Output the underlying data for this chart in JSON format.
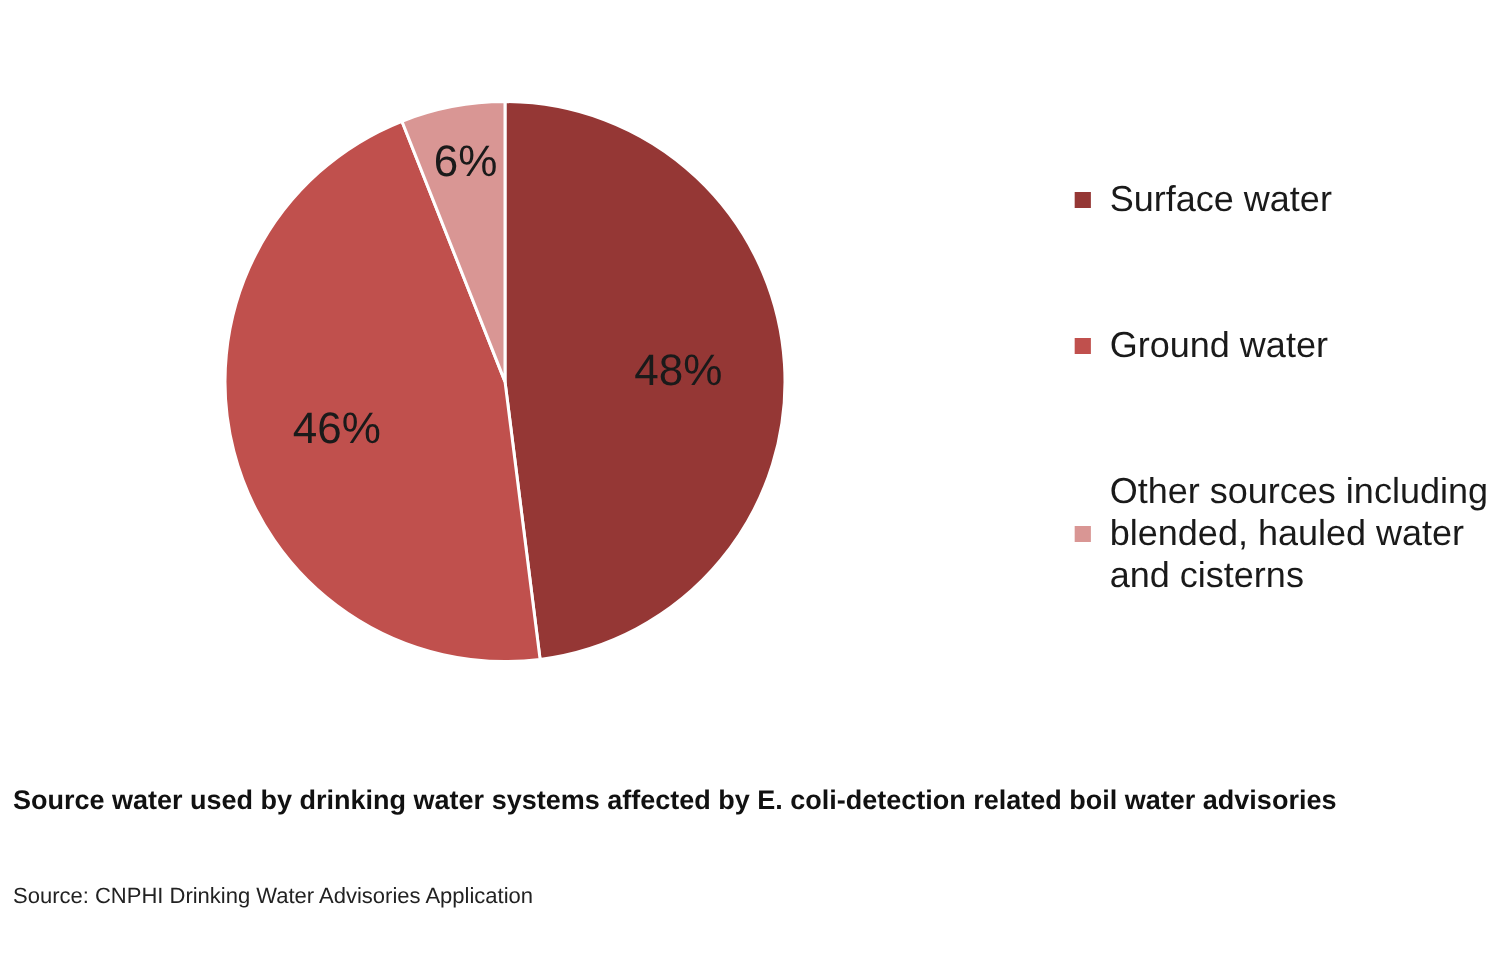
{
  "chart_data": {
    "type": "pie",
    "title": "Source water used by drinking water systems affected by E. coli-detection related boil water advisories",
    "annotations": [
      "Source: CNPHI Drinking Water Advisories Application"
    ],
    "categories": [
      "Surface water",
      "Ground water",
      "Other sources including blended, hauled water and cisterns"
    ],
    "values": [
      48,
      46,
      6
    ],
    "colors": [
      "#953735",
      "#c0504d",
      "#d99694"
    ],
    "value_labels": [
      "48%",
      "46%",
      "6%"
    ],
    "legend": "right"
  }
}
